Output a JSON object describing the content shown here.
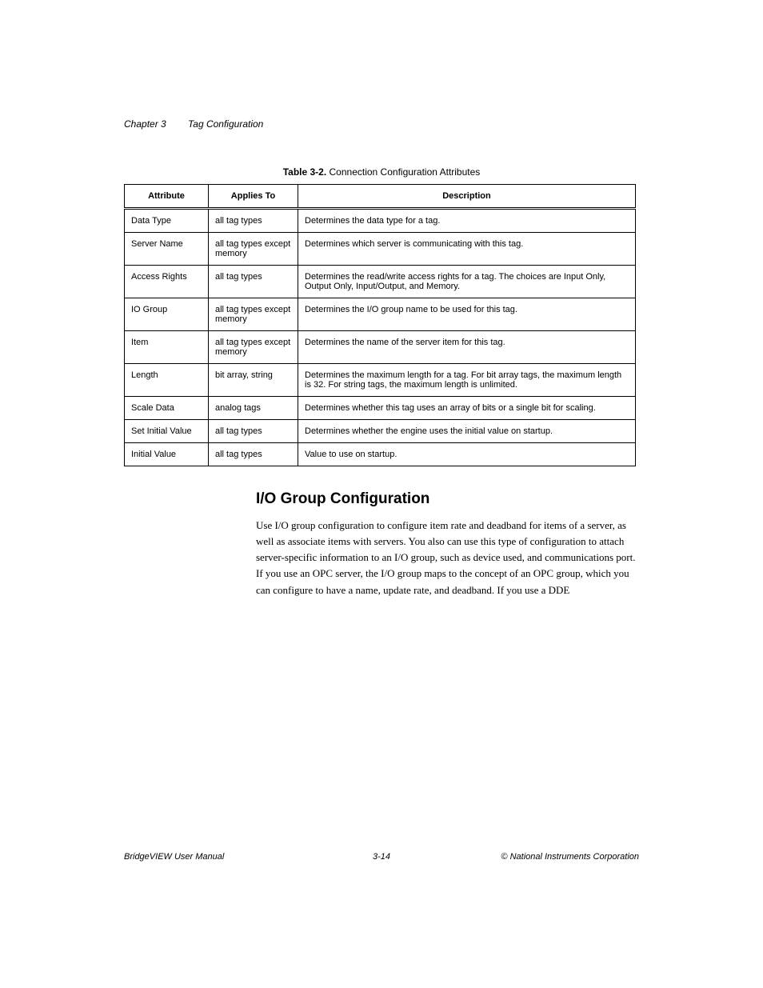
{
  "header": {
    "chapter": "Chapter 3",
    "title": "Tag Configuration"
  },
  "table": {
    "caption_bold": "Table 3-2.",
    "caption_rest": "  Connection Configuration Attributes",
    "columns": [
      "Attribute",
      "Applies To",
      "Description"
    ],
    "rows": [
      [
        "Data Type",
        "all tag types",
        "Determines the data type for a tag."
      ],
      [
        "Server Name",
        "all tag types except memory",
        "Determines which server is communicating with this tag."
      ],
      [
        "Access Rights",
        "all tag types",
        "Determines the read/write access rights for a tag. The choices are Input Only, Output Only, Input/Output, and Memory."
      ],
      [
        "IO Group",
        "all tag types except memory",
        "Determines the I/O group name to be used for this tag."
      ],
      [
        "Item",
        "all tag types except memory",
        "Determines the name of the server item for this tag."
      ],
      [
        "Length",
        "bit array, string",
        "Determines the maximum length for a tag. For bit array tags, the maximum length is 32. For string tags, the maximum length is unlimited."
      ],
      [
        "Scale Data",
        "analog tags",
        "Determines whether this tag uses an array of bits or a single bit for scaling."
      ],
      [
        "Set Initial Value",
        "all tag types",
        "Determines whether the engine uses the initial value on startup."
      ],
      [
        "Initial Value",
        "all tag types",
        "Value to use on startup."
      ]
    ]
  },
  "section": {
    "heading": "I/O Group Configuration",
    "para": "Use I/O group configuration to configure item rate and deadband for items of a server, as well as associate items with servers. You also can use this type of configuration to attach server-specific information to an I/O group, such as device used, and communications port. If you use an OPC server, the I/O group maps to the concept of an OPC group, which you can configure to have a name, update rate, and deadband. If you use a DDE"
  },
  "footer": {
    "left": "BridgeVIEW User Manual",
    "center": "3-14",
    "right": "© National Instruments Corporation"
  }
}
